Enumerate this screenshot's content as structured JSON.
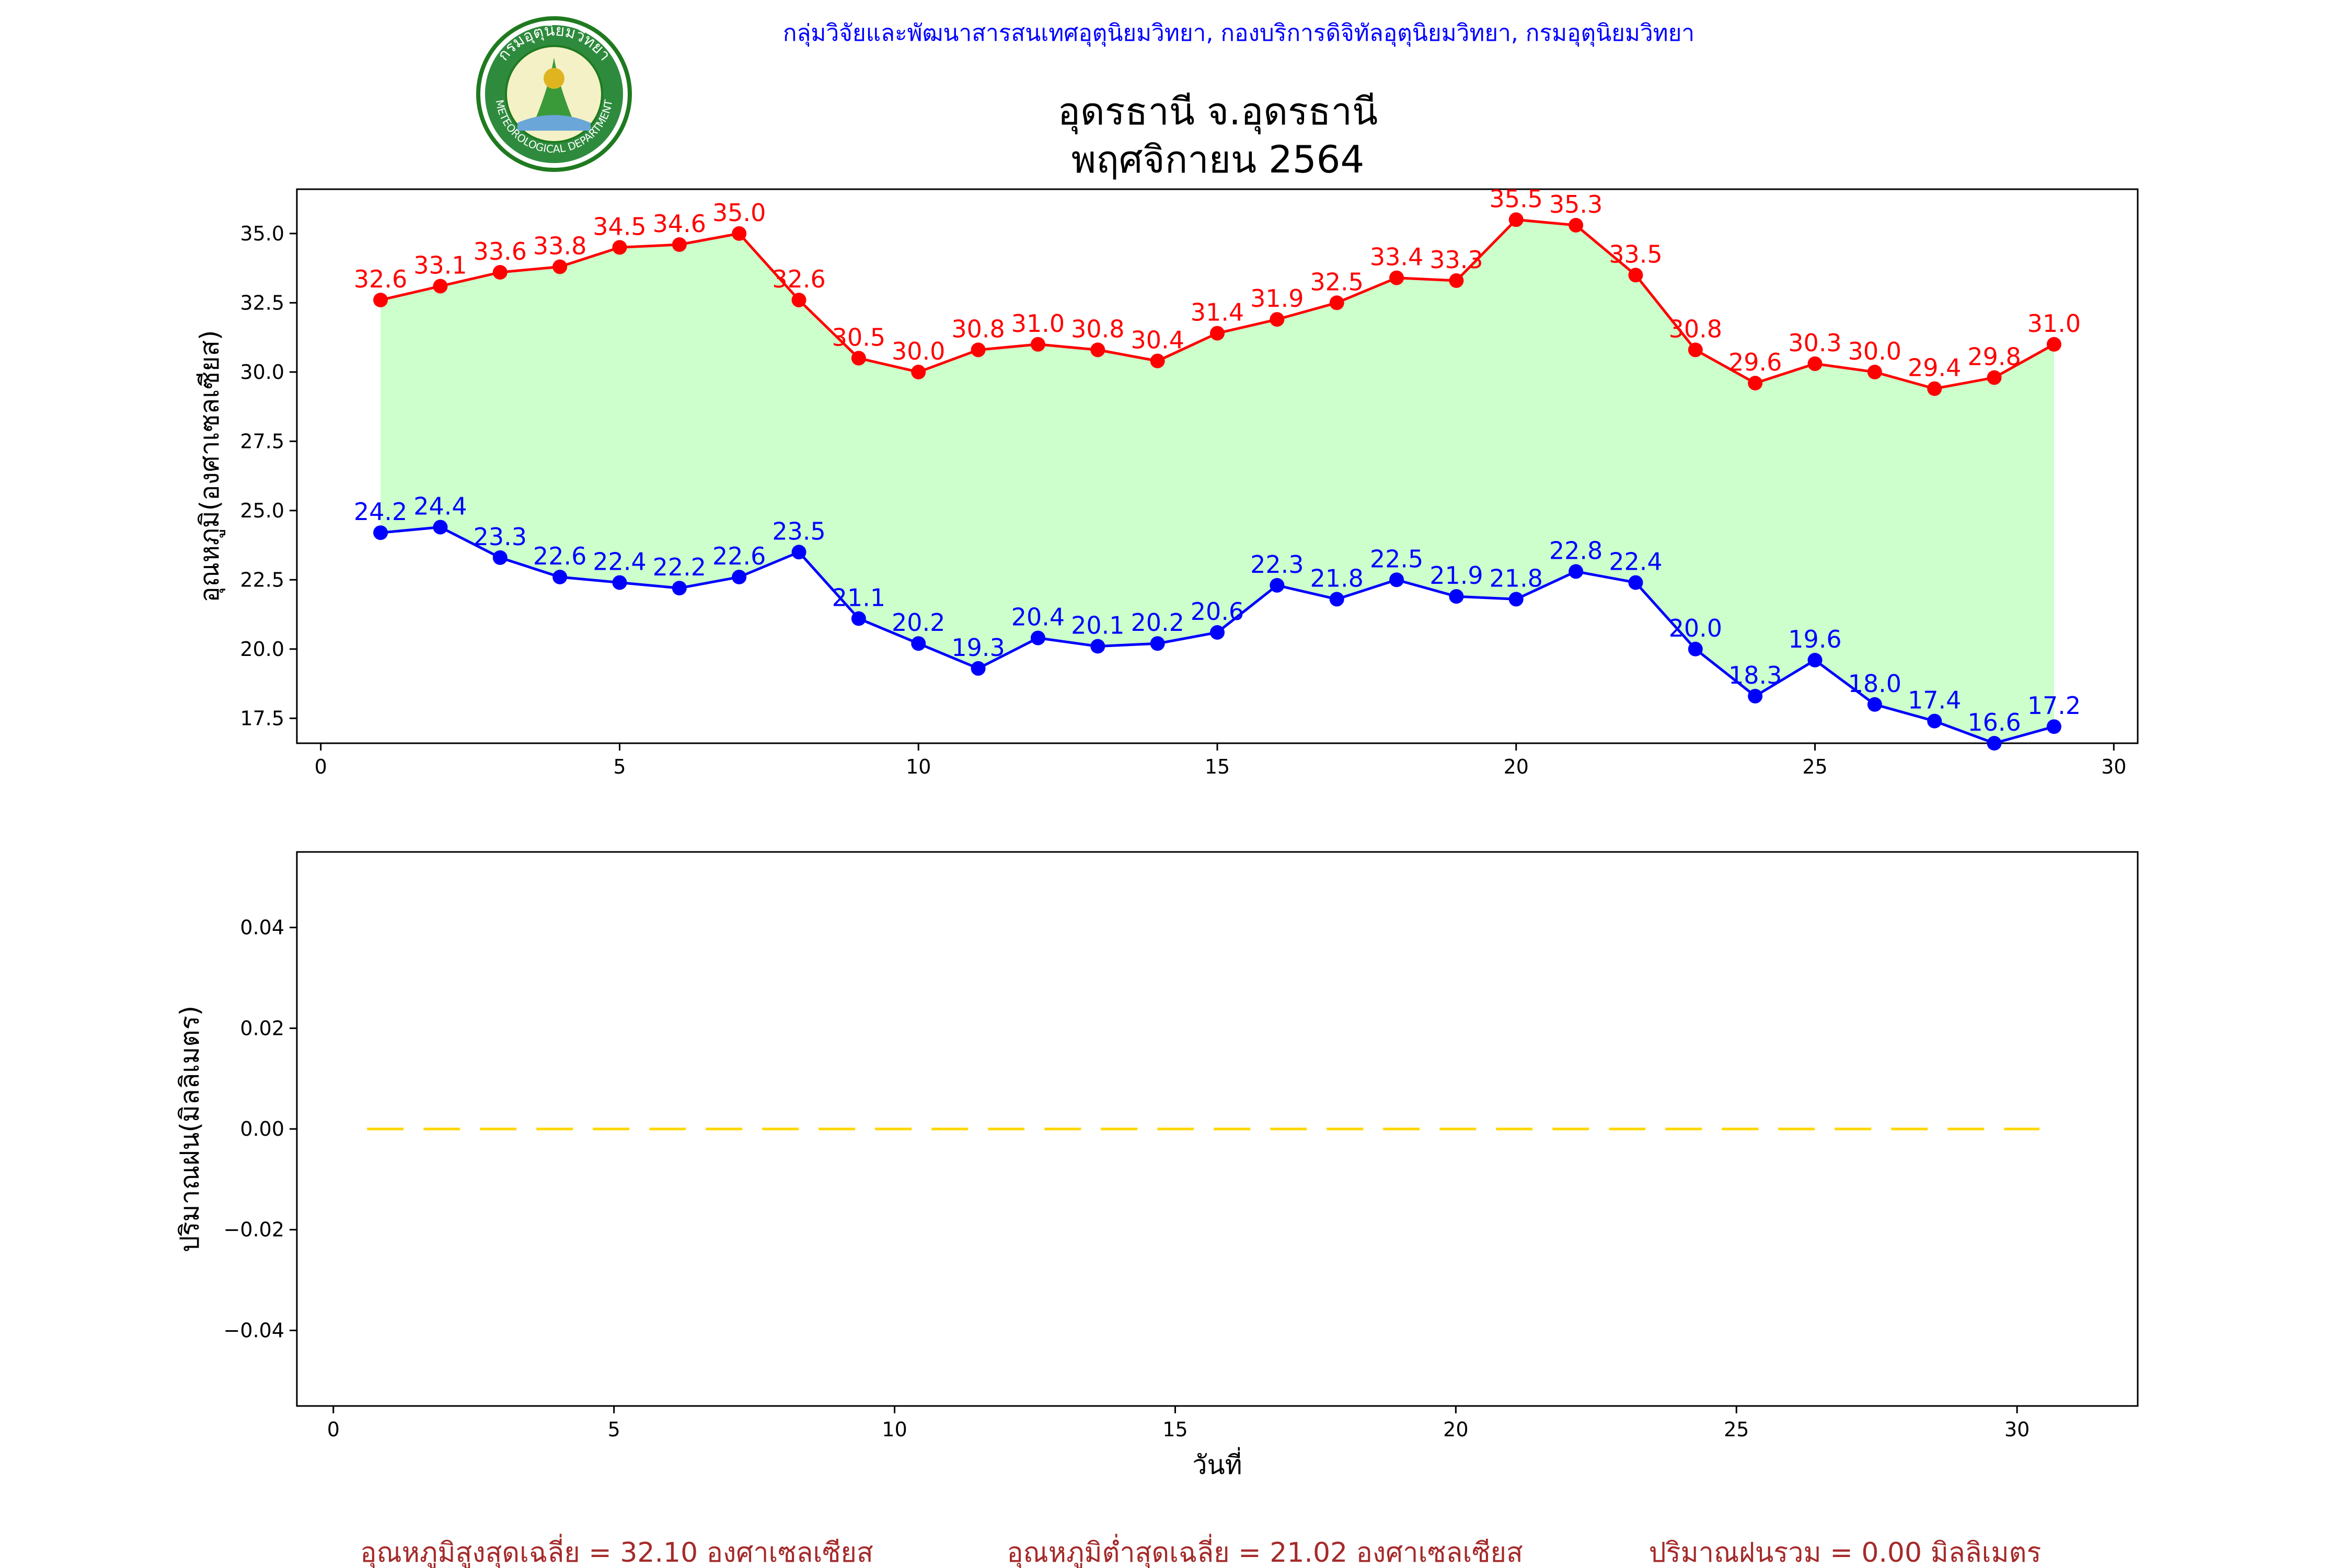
{
  "header": {
    "org_text": "กลุ่มวิจัยและพัฒนาสารสนเทศอุตุนิยมวิทยา, กองบริการดิจิทัลอุตุนิยมวิทยา, กรมอุตุนิยมวิทยา",
    "org_color": "#0000ff",
    "logo_icon": "meteorological-department-seal",
    "logo_top_text": "กรมอุตุนิยมวิทยา",
    "logo_bottom_text": "METEOROLOGICAL DEPARTMENT"
  },
  "title": {
    "line1": "อุดรธานี จ.อุดรธานี",
    "line2": "พฤศจิกายน 2564"
  },
  "footer": {
    "avg_max": "อุณหภูมิสูงสุดเฉลี่ย = 32.10 องศาเซลเซียส",
    "avg_min": "อุณหภูมิต่ำสุดเฉลี่ย = 21.02 องศาเซลเซียส",
    "total_rain": "ปริมาณฝนรวม = 0.00 มิลลิเมตร",
    "color": "#a52a2a"
  },
  "chart_data": [
    {
      "type": "line",
      "ylabel": "อุณหภูมิ(องศาเซลเซียส)",
      "xlim": [
        -0.4,
        30.4
      ],
      "ylim": [
        16.6,
        36.6
      ],
      "xticks": [
        0,
        5,
        10,
        15,
        20,
        25,
        30
      ],
      "yticks": [
        17.5,
        20.0,
        22.5,
        25.0,
        27.5,
        30.0,
        32.5,
        35.0
      ],
      "fill_between_color": "#ccffcc",
      "x": [
        1,
        2,
        3,
        4,
        5,
        6,
        7,
        8,
        9,
        10,
        11,
        12,
        13,
        14,
        15,
        16,
        17,
        18,
        19,
        20,
        21,
        22,
        23,
        24,
        25,
        26,
        27,
        28,
        29
      ],
      "series": [
        {
          "color": "#ff0000",
          "values": [
            32.6,
            33.1,
            33.6,
            33.8,
            34.5,
            34.6,
            35.0,
            32.6,
            30.5,
            30.0,
            30.8,
            31.0,
            30.8,
            30.4,
            31.4,
            31.9,
            32.5,
            33.4,
            33.3,
            35.5,
            35.3,
            33.5,
            30.8,
            29.6,
            30.3,
            30.0,
            29.4,
            29.8,
            31.0
          ]
        },
        {
          "color": "#0000ff",
          "values": [
            24.2,
            24.4,
            23.3,
            22.6,
            22.4,
            22.2,
            22.6,
            23.5,
            21.1,
            20.2,
            19.3,
            20.4,
            20.1,
            20.2,
            20.6,
            22.3,
            21.8,
            22.5,
            21.9,
            21.8,
            22.8,
            22.4,
            20.0,
            18.3,
            19.6,
            18.0,
            17.4,
            16.6,
            17.2
          ]
        }
      ]
    },
    {
      "type": "line",
      "ylabel": "ปริมาณฝน(มิลลิเมตร)",
      "xlabel": "วันที่",
      "xlim": [
        -0.65,
        32.15
      ],
      "ylim": [
        -0.055,
        0.055
      ],
      "xticks": [
        0,
        5,
        10,
        15,
        20,
        25,
        30
      ],
      "yticks": [
        -0.04,
        -0.02,
        0.0,
        0.02,
        0.04
      ],
      "ytick_labels": [
        "−0.04",
        "−0.02",
        "0.00",
        "0.02",
        "0.04"
      ],
      "series": [
        {
          "color": "#ffd700",
          "style": "dashed",
          "x": [
            0.6,
            30.4
          ],
          "values": [
            0,
            0
          ]
        }
      ]
    }
  ]
}
